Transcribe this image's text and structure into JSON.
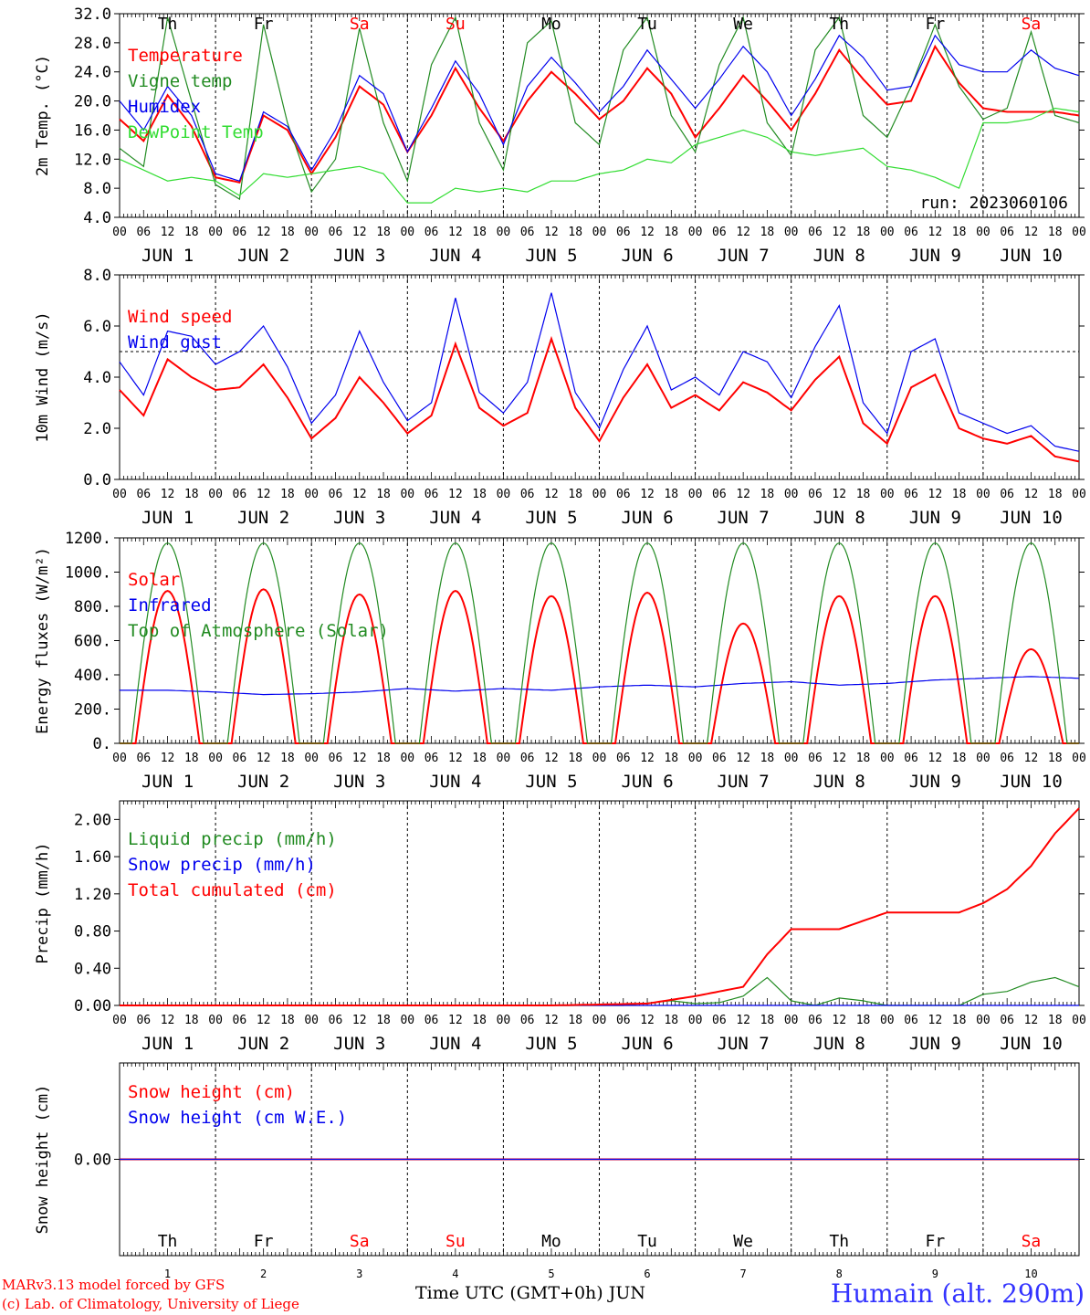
{
  "colors": {
    "red": "#ff0000",
    "green": "#228b22",
    "blue": "#0000ee",
    "light_green": "#33dd33",
    "purple": "#8833cc",
    "weekend_red": "#ff0000",
    "axis": "#000000"
  },
  "footer": {
    "credit_line1": "MARv3.13 model forced by GFS",
    "credit_line2": "(c) Lab. of Climatology, University of Liege",
    "x_title": "Time UTC (GMT+0h) JUN",
    "station": "Humain (alt. 290m)"
  },
  "time_axis": {
    "hour_labels": [
      "00",
      "06",
      "12",
      "18"
    ],
    "final_label": "00",
    "day_labels": [
      "JUN  1",
      "JUN  2",
      "JUN  3",
      "JUN  4",
      "JUN  5",
      "JUN  6",
      "JUN  7",
      "JUN  8",
      "JUN  9",
      "JUN 10"
    ],
    "weekdays": [
      "Th",
      "Fr",
      "Sa",
      "Su",
      "Mo",
      "Tu",
      "We",
      "Th",
      "Fr",
      "Sa"
    ],
    "weekend_flags": [
      false,
      false,
      true,
      true,
      false,
      false,
      false,
      false,
      false,
      true
    ],
    "day_numbers": [
      "1",
      "2",
      "3",
      "4",
      "5",
      "6",
      "7",
      "8",
      "9",
      "10"
    ],
    "n_days": 10
  },
  "chart_data": [
    {
      "type": "line",
      "ylabel": "2m Temp. (°C)",
      "ylim": [
        4,
        32
      ],
      "yticks": [
        4,
        8,
        12,
        16,
        20,
        24,
        28,
        32
      ],
      "ytick_labels": [
        "4.0",
        "8.0",
        "12.0",
        "16.0",
        "20.0",
        "24.0",
        "28.0",
        "32.0"
      ],
      "show_weekdays_top": true,
      "annotation": "run: 2023060106",
      "x_unit": "hours since JUN 1 00 UTC",
      "series": [
        {
          "name": "Temperature",
          "color": "red",
          "x": [
            0,
            6,
            12,
            18,
            24,
            30,
            36,
            42,
            48,
            54,
            60,
            66,
            72,
            78,
            84,
            90,
            96,
            102,
            108,
            114,
            120,
            126,
            132,
            138,
            144,
            150,
            156,
            162,
            168,
            174,
            180,
            186,
            192,
            198,
            204,
            210,
            216,
            222,
            228,
            234,
            240
          ],
          "values": [
            17.5,
            14.5,
            20.8,
            16.5,
            9.5,
            8.8,
            18,
            16,
            10,
            15,
            22,
            19.5,
            13,
            18,
            24.5,
            19,
            14.5,
            20,
            24,
            21,
            17.5,
            20,
            24.5,
            21,
            15,
            19,
            23.5,
            20,
            16,
            21,
            27,
            23,
            19.5,
            20,
            27.5,
            22.5,
            19,
            18.5,
            18.5,
            18.5,
            18
          ]
        },
        {
          "name": "Vigne temp",
          "color": "green",
          "x": [
            0,
            6,
            12,
            18,
            24,
            30,
            36,
            42,
            48,
            54,
            60,
            66,
            72,
            78,
            84,
            90,
            96,
            102,
            108,
            114,
            120,
            126,
            132,
            138,
            144,
            150,
            156,
            162,
            168,
            174,
            180,
            186,
            192,
            198,
            204,
            210,
            216,
            222,
            228,
            234,
            240
          ],
          "values": [
            13.5,
            11,
            31.5,
            20,
            8.5,
            6.5,
            30.5,
            17,
            7.5,
            12,
            30,
            17,
            9,
            25,
            31.5,
            17,
            10.5,
            28,
            31,
            17,
            14,
            27,
            31.5,
            18,
            13,
            25,
            31.5,
            17,
            12.5,
            27,
            31.5,
            18,
            15,
            22,
            30.5,
            22,
            17.5,
            19,
            29.5,
            18,
            17
          ]
        },
        {
          "name": "Humidex",
          "color": "blue",
          "x": [
            0,
            6,
            12,
            18,
            24,
            30,
            36,
            42,
            48,
            54,
            60,
            66,
            72,
            78,
            84,
            90,
            96,
            102,
            108,
            114,
            120,
            126,
            132,
            138,
            144,
            150,
            156,
            162,
            168,
            174,
            180,
            186,
            192,
            198,
            204,
            210,
            216,
            222,
            228,
            234,
            240
          ],
          "values": [
            20,
            16,
            22,
            18,
            10,
            9,
            18.5,
            16.5,
            10.5,
            16,
            23.5,
            21,
            13,
            19,
            25.5,
            21,
            14,
            22,
            26,
            22.5,
            18.5,
            22,
            27,
            23,
            19,
            23,
            27.5,
            24,
            18,
            23,
            29,
            26,
            21.5,
            22,
            29,
            25,
            24,
            24,
            27,
            24.5,
            23.5
          ]
        },
        {
          "name": "DewPoint Temp",
          "color": "light_green",
          "x": [
            0,
            6,
            12,
            18,
            24,
            30,
            36,
            42,
            48,
            54,
            60,
            66,
            72,
            78,
            84,
            90,
            96,
            102,
            108,
            114,
            120,
            126,
            132,
            138,
            144,
            150,
            156,
            162,
            168,
            174,
            180,
            186,
            192,
            198,
            204,
            210,
            216,
            222,
            228,
            234,
            240
          ],
          "values": [
            12,
            10.5,
            9,
            9.5,
            9,
            7,
            10,
            9.5,
            10,
            10.5,
            11,
            10,
            6,
            6,
            8,
            7.5,
            8,
            7.5,
            9,
            9,
            10,
            10.5,
            12,
            11.5,
            14,
            15,
            16,
            15,
            13,
            12.5,
            13,
            13.5,
            11,
            10.5,
            9.5,
            8,
            17,
            17,
            17.5,
            19,
            18.5
          ]
        }
      ]
    },
    {
      "type": "line",
      "ylabel": "10m Wind (m/s)",
      "ylim": [
        0,
        8
      ],
      "yticks": [
        0,
        2,
        4,
        6,
        8
      ],
      "ytick_labels": [
        "0.0",
        "2.0",
        "4.0",
        "6.0",
        "8.0"
      ],
      "reference_line": 5,
      "x_unit": "hours since JUN 1 00 UTC",
      "series": [
        {
          "name": "Wind speed",
          "color": "red",
          "x": [
            0,
            6,
            12,
            18,
            24,
            30,
            36,
            42,
            48,
            54,
            60,
            66,
            72,
            78,
            84,
            90,
            96,
            102,
            108,
            114,
            120,
            126,
            132,
            138,
            144,
            150,
            156,
            162,
            168,
            174,
            180,
            186,
            192,
            198,
            204,
            210,
            216,
            222,
            228,
            234,
            240
          ],
          "values": [
            3.5,
            2.5,
            4.7,
            4,
            3.5,
            3.6,
            4.5,
            3.2,
            1.6,
            2.4,
            4,
            3,
            1.8,
            2.5,
            5.3,
            2.8,
            2.1,
            2.6,
            5.5,
            2.8,
            1.5,
            3.2,
            4.5,
            2.8,
            3.3,
            2.7,
            3.8,
            3.4,
            2.7,
            3.9,
            4.8,
            2.2,
            1.4,
            3.6,
            4.1,
            2.0,
            1.6,
            1.4,
            1.7,
            0.9,
            0.7
          ]
        },
        {
          "name": "Wind gust",
          "color": "blue",
          "x": [
            0,
            6,
            12,
            18,
            24,
            30,
            36,
            42,
            48,
            54,
            60,
            66,
            72,
            78,
            84,
            90,
            96,
            102,
            108,
            114,
            120,
            126,
            132,
            138,
            144,
            150,
            156,
            162,
            168,
            174,
            180,
            186,
            192,
            198,
            204,
            210,
            216,
            222,
            228,
            234,
            240
          ],
          "values": [
            4.6,
            3.3,
            5.8,
            5.6,
            4.5,
            5,
            6,
            4.4,
            2.2,
            3.3,
            5.8,
            3.8,
            2.3,
            3,
            7.1,
            3.4,
            2.6,
            3.8,
            7.3,
            3.4,
            2,
            4.3,
            6,
            3.5,
            4,
            3.3,
            5,
            4.6,
            3.2,
            5.2,
            6.8,
            3,
            1.8,
            5,
            5.5,
            2.6,
            2.2,
            1.8,
            2.1,
            1.3,
            1.1
          ]
        }
      ]
    },
    {
      "type": "line",
      "ylabel": "Energy fluxes (W/m²)",
      "ylim": [
        0,
        1200
      ],
      "yticks": [
        0,
        200,
        400,
        600,
        800,
        1000,
        1200
      ],
      "ytick_labels": [
        "0.",
        "200.",
        "400.",
        "600.",
        "800.",
        "1000.",
        "1200."
      ],
      "x_unit": "hours since JUN 1 00 UTC",
      "daily_peaks": {
        "Solar": [
          890,
          900,
          870,
          890,
          860,
          880,
          700,
          860,
          860,
          550
        ],
        "Top of Atmosphere (Solar)": [
          1170,
          1170,
          1170,
          1170,
          1170,
          1170,
          1170,
          1170,
          1170,
          1170
        ]
      },
      "series": [
        {
          "name": "Solar",
          "color": "red"
        },
        {
          "name": "Infrared",
          "color": "blue",
          "x": [
            0,
            12,
            24,
            36,
            48,
            60,
            72,
            84,
            96,
            108,
            120,
            132,
            144,
            156,
            168,
            180,
            192,
            204,
            216,
            228,
            240
          ],
          "values": [
            310,
            310,
            300,
            285,
            290,
            300,
            320,
            305,
            320,
            310,
            330,
            340,
            330,
            350,
            360,
            340,
            350,
            370,
            380,
            390,
            380
          ]
        },
        {
          "name": "Top of Atmosphere (Solar)",
          "color": "green"
        }
      ]
    },
    {
      "type": "line",
      "ylabel": "Precip (mm/h)",
      "ylim": [
        0,
        2.2
      ],
      "yticks": [
        0,
        0.4,
        0.8,
        1.2,
        1.6,
        2.0
      ],
      "ytick_labels": [
        "0.00",
        "0.40",
        "0.80",
        "1.20",
        "1.60",
        "2.00"
      ],
      "x_unit": "hours since JUN 1 00 UTC",
      "series": [
        {
          "name": "Liquid precip (mm/h)",
          "color": "green",
          "x": [
            0,
            96,
            126,
            138,
            144,
            150,
            156,
            162,
            168,
            174,
            180,
            186,
            192,
            198,
            210,
            216,
            222,
            228,
            234,
            240
          ],
          "values": [
            0,
            0,
            0,
            0.05,
            0.02,
            0.03,
            0.1,
            0.3,
            0.05,
            0,
            0.08,
            0.05,
            0,
            0,
            0,
            0.12,
            0.15,
            0.25,
            0.3,
            0.2
          ]
        },
        {
          "name": "Snow precip (mm/h)",
          "color": "blue",
          "x": [
            0,
            240
          ],
          "values": [
            0,
            0
          ]
        },
        {
          "name": "Total cumulated (cm)",
          "color": "red",
          "x": [
            0,
            108,
            132,
            144,
            150,
            156,
            162,
            168,
            180,
            192,
            210,
            216,
            222,
            228,
            234,
            240
          ],
          "values": [
            0,
            0,
            0.02,
            0.1,
            0.15,
            0.2,
            0.55,
            0.82,
            0.82,
            1.0,
            1.0,
            1.1,
            1.25,
            1.5,
            1.85,
            2.12
          ]
        }
      ]
    },
    {
      "type": "line",
      "ylabel": "Snow height (cm)",
      "ylim": [
        -1,
        1
      ],
      "yticks": [
        0
      ],
      "ytick_labels": [
        "0.00"
      ],
      "show_weekdays_bottom": true,
      "x_unit": "hours since JUN 1 00 UTC",
      "series": [
        {
          "name": "Snow height (cm)",
          "color": "red",
          "x": [
            0,
            240
          ],
          "values": [
            0,
            0
          ]
        },
        {
          "name": "Snow height (cm W.E.)",
          "color": "blue",
          "x": [
            0,
            240
          ],
          "values": [
            0,
            0
          ]
        }
      ]
    }
  ]
}
